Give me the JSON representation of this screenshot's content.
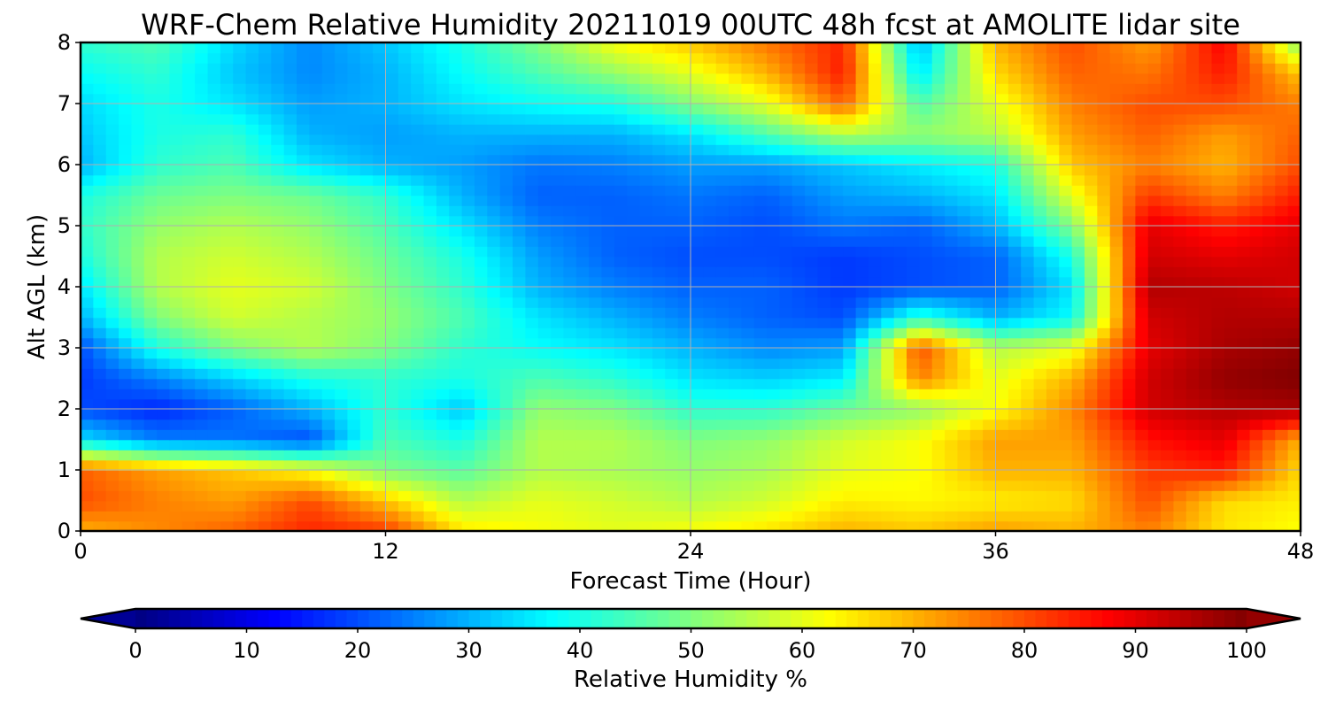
{
  "chart_data": {
    "type": "heatmap",
    "subtype": "filled-contour",
    "title": "WRF-Chem Relative Humidity 20211019 00UTC 48h fcst at AMOLITE lidar site",
    "xlabel": "Forecast Time (Hour)",
    "ylabel": "Alt AGL (km)",
    "xlim": [
      0,
      48
    ],
    "ylim": [
      0,
      8
    ],
    "x_ticks": [
      0,
      12,
      24,
      36,
      48
    ],
    "x_tick_labels": [
      "0",
      "12",
      "24",
      "36",
      "48"
    ],
    "y_ticks": [
      0,
      1,
      2,
      3,
      4,
      5,
      6,
      7,
      8
    ],
    "y_tick_labels": [
      "0",
      "1",
      "2",
      "3",
      "4",
      "5",
      "6",
      "7",
      "8"
    ],
    "grid": true,
    "colormap": "jet",
    "colorbar": {
      "label": "Relative Humidity %",
      "orientation": "horizontal",
      "placement": "bottom",
      "extend": "both",
      "range": [
        0,
        100
      ],
      "ticks": [
        0,
        10,
        20,
        30,
        40,
        50,
        60,
        70,
        80,
        90,
        100
      ],
      "tick_labels": [
        "0",
        "10",
        "20",
        "30",
        "40",
        "50",
        "60",
        "70",
        "80",
        "90",
        "100"
      ]
    },
    "x": [
      0,
      3,
      6,
      9,
      12,
      15,
      18,
      21,
      24,
      27,
      30,
      33,
      36,
      39,
      42,
      45,
      48
    ],
    "y": [
      0,
      0.5,
      1,
      1.5,
      2,
      2.5,
      3,
      3.5,
      4,
      4.5,
      5,
      5.5,
      6,
      6.5,
      7,
      7.5,
      8
    ],
    "z": [
      [
        70,
        74,
        78,
        84,
        82,
        65,
        62,
        60,
        62,
        65,
        70,
        68,
        72,
        70,
        75,
        65,
        62
      ],
      [
        80,
        75,
        72,
        80,
        68,
        55,
        60,
        58,
        55,
        58,
        64,
        63,
        64,
        66,
        80,
        66,
        64
      ],
      [
        78,
        72,
        68,
        62,
        50,
        46,
        55,
        54,
        52,
        54,
        60,
        62,
        70,
        70,
        82,
        85,
        66
      ],
      [
        35,
        25,
        24,
        20,
        45,
        40,
        55,
        55,
        50,
        52,
        58,
        62,
        72,
        72,
        86,
        90,
        70
      ],
      [
        20,
        16,
        22,
        30,
        42,
        32,
        52,
        50,
        42,
        42,
        48,
        52,
        62,
        74,
        92,
        95,
        96
      ],
      [
        18,
        25,
        33,
        40,
        42,
        40,
        45,
        42,
        35,
        33,
        36,
        75,
        60,
        70,
        92,
        98,
        100
      ],
      [
        20,
        40,
        50,
        55,
        50,
        42,
        38,
        35,
        30,
        26,
        28,
        80,
        55,
        60,
        90,
        96,
        98
      ],
      [
        30,
        50,
        58,
        55,
        52,
        45,
        35,
        30,
        25,
        22,
        20,
        42,
        30,
        38,
        92,
        95,
        95
      ],
      [
        35,
        55,
        60,
        58,
        50,
        42,
        30,
        25,
        22,
        22,
        18,
        20,
        22,
        35,
        95,
        94,
        92
      ],
      [
        40,
        55,
        58,
        55,
        48,
        40,
        28,
        22,
        20,
        20,
        18,
        20,
        22,
        40,
        92,
        90,
        92
      ],
      [
        42,
        52,
        55,
        52,
        45,
        35,
        25,
        22,
        22,
        20,
        24,
        22,
        30,
        50,
        90,
        85,
        90
      ],
      [
        40,
        48,
        50,
        48,
        42,
        30,
        22,
        22,
        24,
        22,
        28,
        30,
        35,
        60,
        82,
        75,
        85
      ],
      [
        30,
        42,
        45,
        35,
        30,
        28,
        24,
        25,
        28,
        28,
        32,
        36,
        40,
        68,
        75,
        70,
        80
      ],
      [
        32,
        40,
        42,
        30,
        28,
        30,
        30,
        30,
        35,
        45,
        55,
        52,
        55,
        72,
        78,
        72,
        78
      ],
      [
        34,
        40,
        35,
        28,
        30,
        35,
        38,
        40,
        50,
        60,
        78,
        45,
        60,
        75,
        80,
        80,
        75
      ],
      [
        38,
        42,
        32,
        26,
        30,
        38,
        45,
        52,
        60,
        70,
        85,
        35,
        66,
        78,
        76,
        85,
        68
      ],
      [
        42,
        45,
        34,
        26,
        32,
        40,
        50,
        62,
        68,
        76,
        84,
        30,
        70,
        80,
        72,
        88,
        50
      ]
    ]
  }
}
